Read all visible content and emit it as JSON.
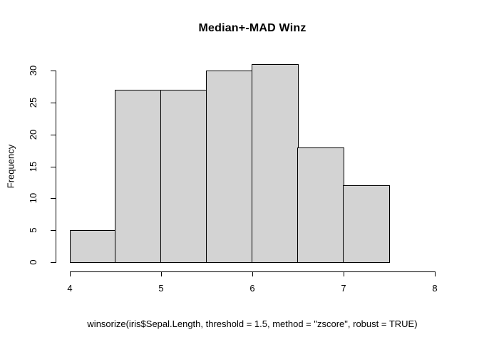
{
  "chart_data": {
    "type": "bar",
    "subtype": "histogram",
    "title": "Median+-MAD Winz",
    "xlabel": "winsorize(iris$Sepal.Length, threshold = 1.5, method = \"zscore\", robust = TRUE)",
    "ylabel": "Frequency",
    "breaks": [
      4.0,
      4.5,
      5.0,
      5.5,
      6.0,
      6.5,
      7.0,
      7.5
    ],
    "counts": [
      5,
      27,
      27,
      30,
      31,
      18,
      12
    ],
    "x_ticks": [
      "4",
      "5",
      "6",
      "7",
      "8"
    ],
    "x_tick_values": [
      4,
      5,
      6,
      7,
      8
    ],
    "y_ticks": [
      "0",
      "5",
      "10",
      "15",
      "20",
      "25",
      "30"
    ],
    "y_tick_values": [
      0,
      5,
      10,
      15,
      20,
      25,
      30
    ],
    "xlim": [
      4,
      8
    ],
    "ylim": [
      0,
      30
    ],
    "grid": false,
    "legend": "none",
    "bar_fill": "#d3d3d3",
    "bar_stroke": "#000000",
    "axis_color": "#000000",
    "background": "#ffffff"
  }
}
